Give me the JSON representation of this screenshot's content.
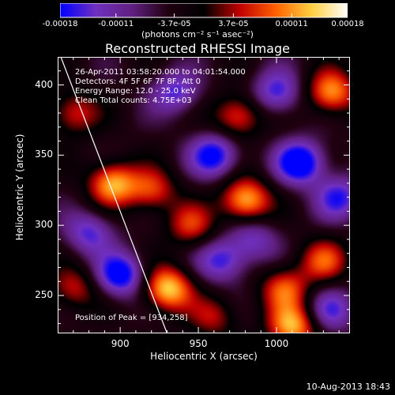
{
  "chart_data": {
    "type": "heatmap",
    "title": "Reconstructed RHESSI Image",
    "xlabel": "Heliocentric X (arcsec)",
    "ylabel": "Heliocentric Y (arcsec)",
    "xlim": [
      860,
      1047
    ],
    "ylim": [
      223,
      420
    ],
    "x_ticks": [
      "900",
      "950",
      "1000"
    ],
    "y_ticks": [
      "250",
      "300",
      "350",
      "400"
    ],
    "colorbar": {
      "tick_labels": [
        "-0.00018",
        "-0.00011",
        "-3.7e-05",
        "3.7e-05",
        "0.00011",
        "0.00018"
      ],
      "tick_values": [
        -0.00018,
        -0.00011,
        -3.7e-05,
        3.7e-05,
        0.00011,
        0.00018
      ],
      "range": [
        -0.00018,
        0.00018
      ],
      "unit_label": "(photons cm⁻² s⁻¹ asec⁻²)",
      "colors": [
        "#0000ff",
        "#7030c0",
        "#602080",
        "#200010",
        "#000000",
        "#c00000",
        "#ff6000",
        "#ffd040",
        "#ffffff"
      ]
    },
    "info_lines": [
      "26-Apr-2011 03:58:20.000 to 04:01:54.000",
      "Detectors: 4F 5F 6F 7F 8F, Att 0",
      "Energy Range: 12.0 - 25.0 keV",
      "Clean     Total counts: 4.75E+03"
    ],
    "peak_label": "Position of Peak = [934,258]",
    "peak_position": [
      934,
      258
    ],
    "limb_line": [
      [
        862,
        420
      ],
      [
        930,
        223
      ]
    ],
    "hot_spots": [
      {
        "x": 930,
        "y": 255,
        "value": 0.00018
      },
      {
        "x": 895,
        "y": 330,
        "value": 0.00016
      },
      {
        "x": 980,
        "y": 318,
        "value": 0.00017
      },
      {
        "x": 1035,
        "y": 395,
        "value": 0.00015
      },
      {
        "x": 1010,
        "y": 228,
        "value": 0.00016
      },
      {
        "x": 1005,
        "y": 255,
        "value": 0.00012
      },
      {
        "x": 975,
        "y": 378,
        "value": 0.00012
      },
      {
        "x": 920,
        "y": 325,
        "value": 0.00011
      },
      {
        "x": 870,
        "y": 380,
        "value": 0.0001
      },
      {
        "x": 945,
        "y": 300,
        "value": 0.0001
      },
      {
        "x": 1030,
        "y": 275,
        "value": 0.00011
      },
      {
        "x": 870,
        "y": 255,
        "value": 9e-05
      },
      {
        "x": 960,
        "y": 235,
        "value": 8e-05
      }
    ],
    "cold_spots": [
      {
        "x": 1015,
        "y": 345,
        "value": -0.00018
      },
      {
        "x": 960,
        "y": 350,
        "value": -0.00015
      },
      {
        "x": 900,
        "y": 265,
        "value": -0.00016
      },
      {
        "x": 1000,
        "y": 395,
        "value": -0.00012
      },
      {
        "x": 935,
        "y": 395,
        "value": -0.00011
      },
      {
        "x": 1040,
        "y": 320,
        "value": -0.00012
      },
      {
        "x": 880,
        "y": 295,
        "value": -0.00011
      },
      {
        "x": 965,
        "y": 275,
        "value": -0.00012
      },
      {
        "x": 1035,
        "y": 240,
        "value": -0.0001
      },
      {
        "x": 985,
        "y": 290,
        "value": -9e-05
      }
    ]
  },
  "footer": {
    "datestamp": "10-Aug-2013 18:43"
  }
}
